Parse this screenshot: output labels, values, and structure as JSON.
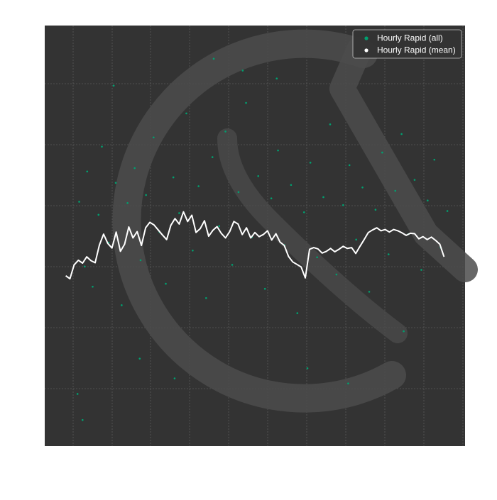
{
  "chart_data": {
    "type": "scatter",
    "title": "",
    "xlabel": "",
    "ylabel": "",
    "xlim": [
      0,
      100
    ],
    "ylim": [
      0,
      100
    ],
    "grid": true,
    "legend_placement": "top-right",
    "background_color": "#333333",
    "series": [
      {
        "name": "Hourly Rapid (all)",
        "kind": "scatter",
        "color": "#00a070",
        "points": [
          [
            8.2,
            58.1
          ],
          [
            9.5,
            42.7
          ],
          [
            10.1,
            65.3
          ],
          [
            11.4,
            37.9
          ],
          [
            12.8,
            55.0
          ],
          [
            13.6,
            71.2
          ],
          [
            15.2,
            48.4
          ],
          [
            16.9,
            62.6
          ],
          [
            18.3,
            33.5
          ],
          [
            19.7,
            57.8
          ],
          [
            21.4,
            66.1
          ],
          [
            22.8,
            44.2
          ],
          [
            24.1,
            59.7
          ],
          [
            25.9,
            73.4
          ],
          [
            27.3,
            50.9
          ],
          [
            28.8,
            38.6
          ],
          [
            30.6,
            63.9
          ],
          [
            32.0,
            55.4
          ],
          [
            33.7,
            79.1
          ],
          [
            35.2,
            46.5
          ],
          [
            36.6,
            61.8
          ],
          [
            38.4,
            35.2
          ],
          [
            39.9,
            68.7
          ],
          [
            41.5,
            52.3
          ],
          [
            43.0,
            74.8
          ],
          [
            44.6,
            43.1
          ],
          [
            46.1,
            60.4
          ],
          [
            47.9,
            81.6
          ],
          [
            49.3,
            49.7
          ],
          [
            50.8,
            64.2
          ],
          [
            52.4,
            37.4
          ],
          [
            53.9,
            58.9
          ],
          [
            55.5,
            70.3
          ],
          [
            57.0,
            47.8
          ],
          [
            58.6,
            62.1
          ],
          [
            60.1,
            31.6
          ],
          [
            61.7,
            55.6
          ],
          [
            63.2,
            67.4
          ],
          [
            64.8,
            44.9
          ],
          [
            66.3,
            59.2
          ],
          [
            67.9,
            76.5
          ],
          [
            69.4,
            40.8
          ],
          [
            71.0,
            57.3
          ],
          [
            72.5,
            66.8
          ],
          [
            74.1,
            49.1
          ],
          [
            75.6,
            61.5
          ],
          [
            77.2,
            36.7
          ],
          [
            78.7,
            56.2
          ],
          [
            80.3,
            69.8
          ],
          [
            81.8,
            45.6
          ],
          [
            83.4,
            60.7
          ],
          [
            84.9,
            74.2
          ],
          [
            86.5,
            50.4
          ],
          [
            88.0,
            63.3
          ],
          [
            89.6,
            41.9
          ],
          [
            91.1,
            58.4
          ],
          [
            92.7,
            68.1
          ],
          [
            94.2,
            47.2
          ],
          [
            95.8,
            55.9
          ],
          [
            9.0,
            6.2
          ],
          [
            7.8,
            12.4
          ],
          [
            16.4,
            85.7
          ],
          [
            40.2,
            92.1
          ],
          [
            47.1,
            89.3
          ],
          [
            62.5,
            18.5
          ],
          [
            72.2,
            14.9
          ],
          [
            22.6,
            20.8
          ],
          [
            55.2,
            87.4
          ],
          [
            85.4,
            27.3
          ],
          [
            30.9,
            16.1
          ]
        ]
      },
      {
        "name": "Hourly Rapid (mean)",
        "kind": "line",
        "color": "#ffffff",
        "x": [
          5.0,
          6.0,
          7.0,
          8.0,
          9.0,
          10.0,
          11.0,
          12.0,
          13.0,
          14.0,
          15.0,
          16.0,
          17.0,
          18.0,
          19.0,
          20.0,
          21.0,
          22.0,
          23.0,
          24.0,
          25.0,
          26.0,
          27.0,
          28.0,
          29.0,
          30.0,
          31.0,
          32.0,
          33.0,
          34.0,
          35.0,
          36.0,
          37.0,
          38.0,
          39.0,
          40.0,
          41.0,
          42.0,
          43.0,
          44.0,
          45.0,
          46.0,
          47.0,
          48.0,
          49.0,
          50.0,
          51.0,
          52.0,
          53.0,
          54.0,
          55.0,
          56.0,
          57.0,
          58.0,
          59.0,
          60.0,
          61.0,
          62.0,
          63.0,
          64.0,
          65.0,
          66.0,
          67.0,
          68.0,
          69.0,
          70.0,
          71.0,
          72.0,
          73.0,
          74.0,
          75.0,
          76.0,
          77.0,
          78.0,
          79.0,
          80.0,
          81.0,
          82.0,
          83.0,
          84.0,
          85.0,
          86.0,
          87.0,
          88.0,
          89.0,
          90.0,
          91.0,
          92.0,
          93.0,
          94.0,
          95.0
        ],
        "y": [
          40.5,
          39.8,
          43.1,
          44.2,
          43.5,
          45.0,
          44.1,
          43.6,
          47.8,
          50.4,
          48.2,
          47.1,
          50.9,
          46.3,
          48.0,
          52.1,
          49.5,
          51.0,
          47.7,
          51.9,
          53.2,
          52.6,
          51.4,
          50.2,
          49.1,
          52.5,
          54.1,
          52.8,
          55.7,
          53.4,
          54.9,
          50.8,
          51.7,
          53.6,
          49.9,
          51.3,
          52.2,
          50.6,
          49.5,
          51.0,
          53.4,
          52.8,
          50.3,
          51.9,
          49.5,
          50.8,
          49.8,
          50.3,
          51.2,
          49.0,
          50.5,
          48.5,
          47.7,
          45.1,
          43.8,
          43.2,
          42.6,
          40.0,
          46.8,
          47.2,
          46.9,
          45.9,
          46.3,
          47.0,
          46.2,
          46.8,
          47.5,
          47.0,
          47.2,
          45.8,
          47.5,
          49.1,
          50.8,
          51.4,
          51.9,
          51.2,
          51.5,
          50.9,
          51.5,
          51.2,
          50.7,
          50.1,
          50.6,
          50.5,
          49.3,
          49.8,
          49.1,
          49.7,
          48.9,
          48.0,
          45.0
        ]
      }
    ],
    "legend": [
      {
        "label": "Hourly Rapid (all)",
        "color": "#00a070"
      },
      {
        "label": "Hourly Rapid (mean)",
        "color": "#ffffff"
      }
    ]
  }
}
